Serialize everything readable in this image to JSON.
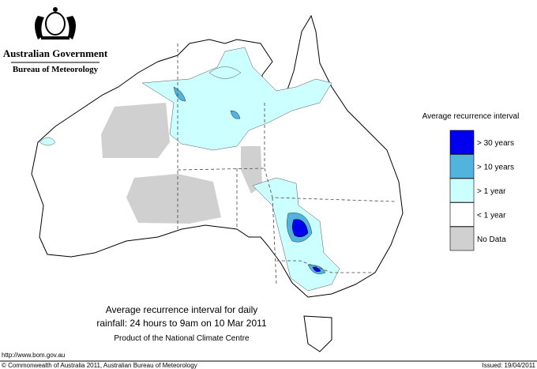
{
  "header": {
    "government": "Australian Government",
    "agency": "Bureau of Meteorology"
  },
  "legend": {
    "title": "Average recurrence interval",
    "items": [
      {
        "label": "> 30 years",
        "color": "#0000ee"
      },
      {
        "label": "> 10 years",
        "color": "#52b4dc"
      },
      {
        "label": "> 1 year",
        "color": "#ccffff"
      },
      {
        "label": "< 1 year",
        "color": "#ffffff"
      },
      {
        "label": "No Data",
        "color": "#d0d0d0"
      }
    ]
  },
  "caption": {
    "lines": [
      "Average recurrence interval for daily",
      "rainfall: 24 hours to 9am on 10 Mar 2011"
    ],
    "product": "Product of the National Climate Centre"
  },
  "footer": {
    "url": "http://www.bom.gov.au",
    "copyright": "© Commonwealth of Australia 2011, Australian Bureau of Meteorology",
    "issued": "Issued: 19/04/2011"
  }
}
